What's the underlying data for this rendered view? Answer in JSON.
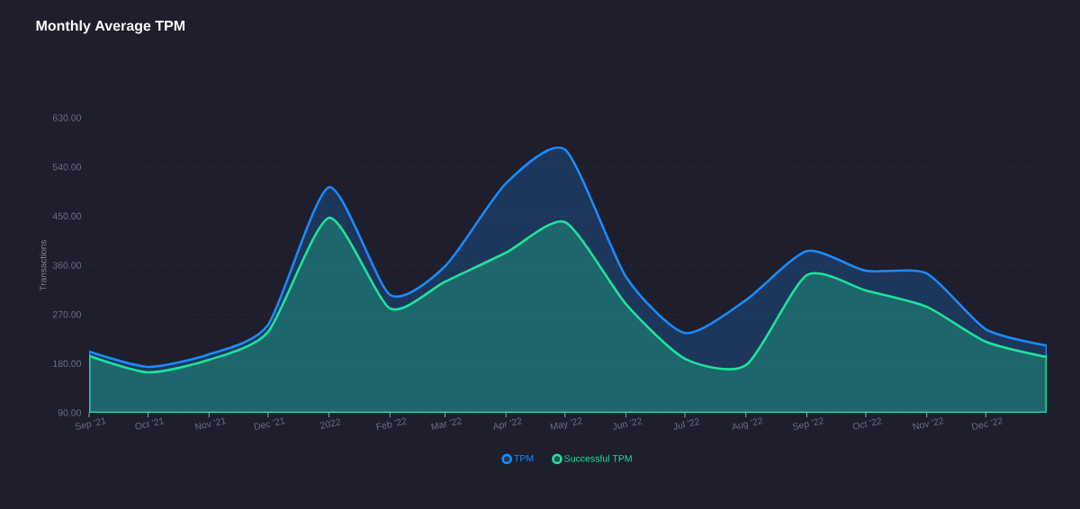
{
  "chart_data": {
    "type": "area",
    "title": "Monthly Average TPM",
    "ylabel": "Transactions",
    "x": [
      "2021-09",
      "2021-10",
      "2021-11",
      "2021-12",
      "2022-01",
      "2022-02",
      "2022-03",
      "2022-04",
      "2022-05",
      "2022-06",
      "2022-07",
      "2022-08",
      "2022-09",
      "2022-10",
      "2022-11",
      "2022-12",
      "2023-01"
    ],
    "series": [
      {
        "name": "TPM",
        "color": "#1a8cff",
        "values": [
          202,
          174,
          197,
          251,
          503,
          306,
          358,
          510,
          572,
          339,
          236,
          296,
          386,
          350,
          345,
          243,
          213
        ]
      },
      {
        "name": "Successful TPM",
        "color": "#1de39b",
        "values": [
          194,
          164,
          187,
          238,
          447,
          281,
          330,
          383,
          439,
          289,
          189,
          177,
          342,
          314,
          284,
          220,
          192
        ]
      }
    ],
    "xlim": [
      "2021-09",
      "2023-01"
    ],
    "xticks": [
      {
        "value": "2021-09",
        "label": "Sep '21"
      },
      {
        "value": "2021-10",
        "label": "Oct '21"
      },
      {
        "value": "2021-11",
        "label": "Nov '21"
      },
      {
        "value": "2021-12",
        "label": "Dec '21"
      },
      {
        "value": "2022-01",
        "label": "2022"
      },
      {
        "value": "2022-02",
        "label": "Feb '22"
      },
      {
        "value": "2022-03",
        "label": "Mar '22"
      },
      {
        "value": "2022-04",
        "label": "Apr '22"
      },
      {
        "value": "2022-05",
        "label": "May '22"
      },
      {
        "value": "2022-06",
        "label": "Jun '22"
      },
      {
        "value": "2022-07",
        "label": "Jul '22"
      },
      {
        "value": "2022-08",
        "label": "Aug '22"
      },
      {
        "value": "2022-09",
        "label": "Sep '22"
      },
      {
        "value": "2022-10",
        "label": "Oct '22"
      },
      {
        "value": "2022-11",
        "label": "Nov '22"
      },
      {
        "value": "2022-12",
        "label": "Dec '22"
      }
    ],
    "ylim": [
      90,
      630
    ],
    "yticks": [
      {
        "value": 90,
        "label": "90.00"
      },
      {
        "value": 180,
        "label": "180.00"
      },
      {
        "value": 270,
        "label": "270.00"
      },
      {
        "value": 360,
        "label": "360.00"
      },
      {
        "value": 450,
        "label": "450.00"
      },
      {
        "value": 540,
        "label": "540.00"
      },
      {
        "value": 630,
        "label": "630.00"
      }
    ],
    "grid": "y",
    "legend": "bottom",
    "line_style": "solid",
    "marker": "none"
  }
}
